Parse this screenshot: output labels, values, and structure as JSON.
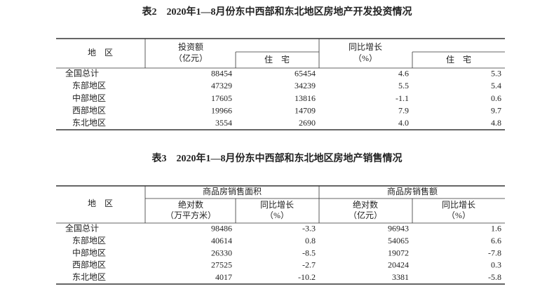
{
  "table2": {
    "title": "表2　2020年1—8月份东中西部和东北地区房地产开发投资情况",
    "header": {
      "region": "地　区",
      "investment": "投资额",
      "investment_unit": "（亿元）",
      "residential": "住　宅",
      "growth": "同比增长",
      "growth_unit": "（%）",
      "growth_residential": "住　宅"
    },
    "rows": [
      [
        "全国总计",
        "88454",
        "65454",
        "4.6",
        "5.3"
      ],
      [
        "东部地区",
        "47329",
        "34239",
        "5.5",
        "5.4"
      ],
      [
        "中部地区",
        "17605",
        "13816",
        "-1.1",
        "0.6"
      ],
      [
        "西部地区",
        "19966",
        "14709",
        "7.9",
        "9.7"
      ],
      [
        "东北地区",
        "3554",
        "2690",
        "4.0",
        "4.8"
      ]
    ]
  },
  "table3": {
    "title": "表3　2020年1—8月份东中西部和东北地区房地产销售情况",
    "header": {
      "region": "地　区",
      "area": "商品房销售面积",
      "sales": "商品房销售额",
      "area_abs": "绝对数",
      "area_abs_unit": "（万平方米）",
      "area_growth": "同比增长",
      "area_growth_unit": "（%）",
      "sales_abs": "绝对数",
      "sales_abs_unit": "（亿元）",
      "sales_growth": "同比增长",
      "sales_growth_unit": "（%）"
    },
    "rows": [
      [
        "全国总计",
        "98486",
        "-3.3",
        "96943",
        "1.6"
      ],
      [
        "东部地区",
        "40614",
        "0.8",
        "54065",
        "6.6"
      ],
      [
        "中部地区",
        "26330",
        "-8.5",
        "19072",
        "-7.8"
      ],
      [
        "西部地区",
        "27525",
        "-2.7",
        "20424",
        "0.3"
      ],
      [
        "东北地区",
        "4017",
        "-10.2",
        "3381",
        "-5.8"
      ]
    ]
  }
}
